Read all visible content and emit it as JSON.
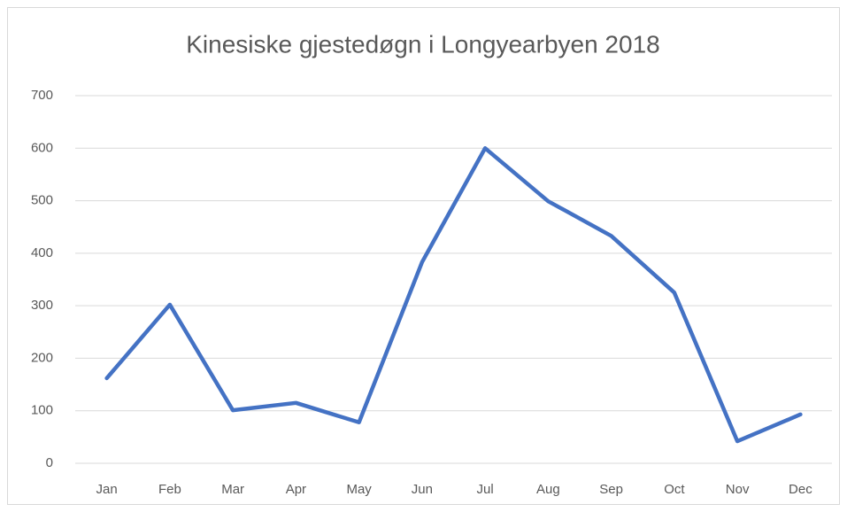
{
  "chart_data": {
    "type": "line",
    "title": "Kinesiske gjestedøgn i Longyearbyen 2018",
    "categories": [
      "Jan",
      "Feb",
      "Mar",
      "Apr",
      "May",
      "Jun",
      "Jul",
      "Aug",
      "Sep",
      "Oct",
      "Nov",
      "Dec"
    ],
    "series": [
      {
        "name": "Kinesiske gjestedøgn",
        "color": "#4472c4",
        "values": [
          162,
          302,
          101,
          115,
          78,
          383,
          600,
          499,
          433,
          325,
          42,
          93
        ]
      }
    ],
    "ylim": [
      0,
      700
    ],
    "yticks": [
      0,
      100,
      200,
      300,
      400,
      500,
      600,
      700
    ],
    "grid": true
  }
}
